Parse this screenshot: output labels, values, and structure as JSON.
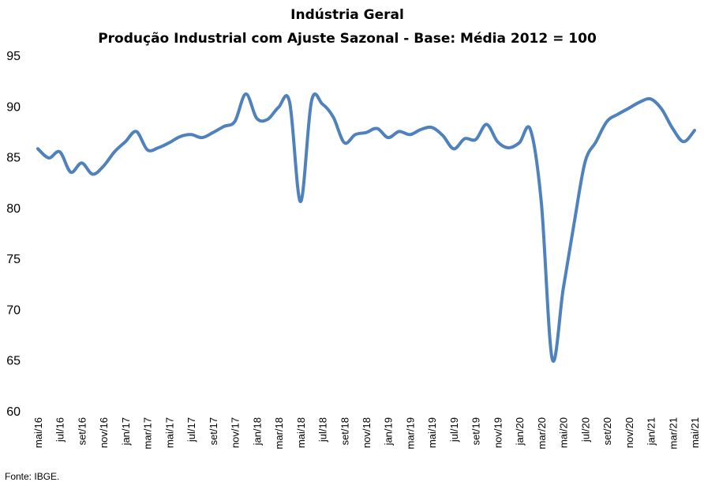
{
  "chart_data": {
    "type": "line",
    "title": "Indústria Geral",
    "subtitle": "Produção Industrial com Ajuste Sazonal - Base: Média 2012 = 100",
    "xlabel": "",
    "ylabel": "",
    "ylim": [
      60,
      95
    ],
    "yticks": [
      60,
      65,
      70,
      75,
      80,
      85,
      90,
      95
    ],
    "grid": false,
    "legend": "none",
    "line_color": "#4f81bd",
    "x_tick_labels": [
      "mai/16",
      "jul/16",
      "set/16",
      "nov/16",
      "jan/17",
      "mar/17",
      "mai/17",
      "jul/17",
      "set/17",
      "nov/17",
      "jan/18",
      "mar/18",
      "mai/18",
      "jul/18",
      "set/18",
      "nov/18",
      "jan/19",
      "mar/19",
      "mai/19",
      "jul/19",
      "set/19",
      "nov/19",
      "jan/20",
      "mar/20",
      "mai/20",
      "jul/20",
      "set/20",
      "nov/20",
      "jan/21",
      "mar/21",
      "mai/21"
    ],
    "x": [
      "mai/16",
      "jun/16",
      "jul/16",
      "ago/16",
      "set/16",
      "out/16",
      "nov/16",
      "dez/16",
      "jan/17",
      "fev/17",
      "mar/17",
      "abr/17",
      "mai/17",
      "jun/17",
      "jul/17",
      "ago/17",
      "set/17",
      "out/17",
      "nov/17",
      "dez/17",
      "jan/18",
      "fev/18",
      "mar/18",
      "abr/18",
      "mai/18",
      "jun/18",
      "jul/18",
      "ago/18",
      "set/18",
      "out/18",
      "nov/18",
      "dez/18",
      "jan/19",
      "fev/19",
      "mar/19",
      "abr/19",
      "mai/19",
      "jun/19",
      "jul/19",
      "ago/19",
      "set/19",
      "out/19",
      "nov/19",
      "dez/19",
      "jan/20",
      "fev/20",
      "mar/20",
      "abr/20",
      "mai/20",
      "jun/20",
      "jul/20",
      "ago/20",
      "set/20",
      "out/20",
      "nov/20",
      "dez/20",
      "jan/21",
      "fev/21",
      "mar/21",
      "abr/21",
      "mai/21"
    ],
    "series": [
      {
        "values": [
          85.8,
          84.9,
          85.5,
          83.5,
          84.4,
          83.3,
          84.1,
          85.5,
          86.5,
          87.5,
          85.7,
          85.9,
          86.4,
          87.0,
          87.2,
          86.9,
          87.4,
          88.0,
          88.5,
          91.2,
          88.8,
          88.7,
          89.9,
          90.4,
          80.6,
          90.5,
          90.2,
          88.9,
          86.4,
          87.2,
          87.4,
          87.8,
          86.9,
          87.5,
          87.2,
          87.7,
          87.9,
          87.1,
          85.8,
          86.8,
          86.7,
          88.2,
          86.5,
          85.9,
          86.4,
          87.7,
          80.5,
          65.1,
          72.0,
          78.5,
          84.5,
          86.5,
          88.5,
          89.2,
          89.8,
          90.4,
          90.7,
          89.7,
          87.8,
          86.5,
          87.6
        ]
      }
    ],
    "source_note": "Fonte: IBGE."
  }
}
